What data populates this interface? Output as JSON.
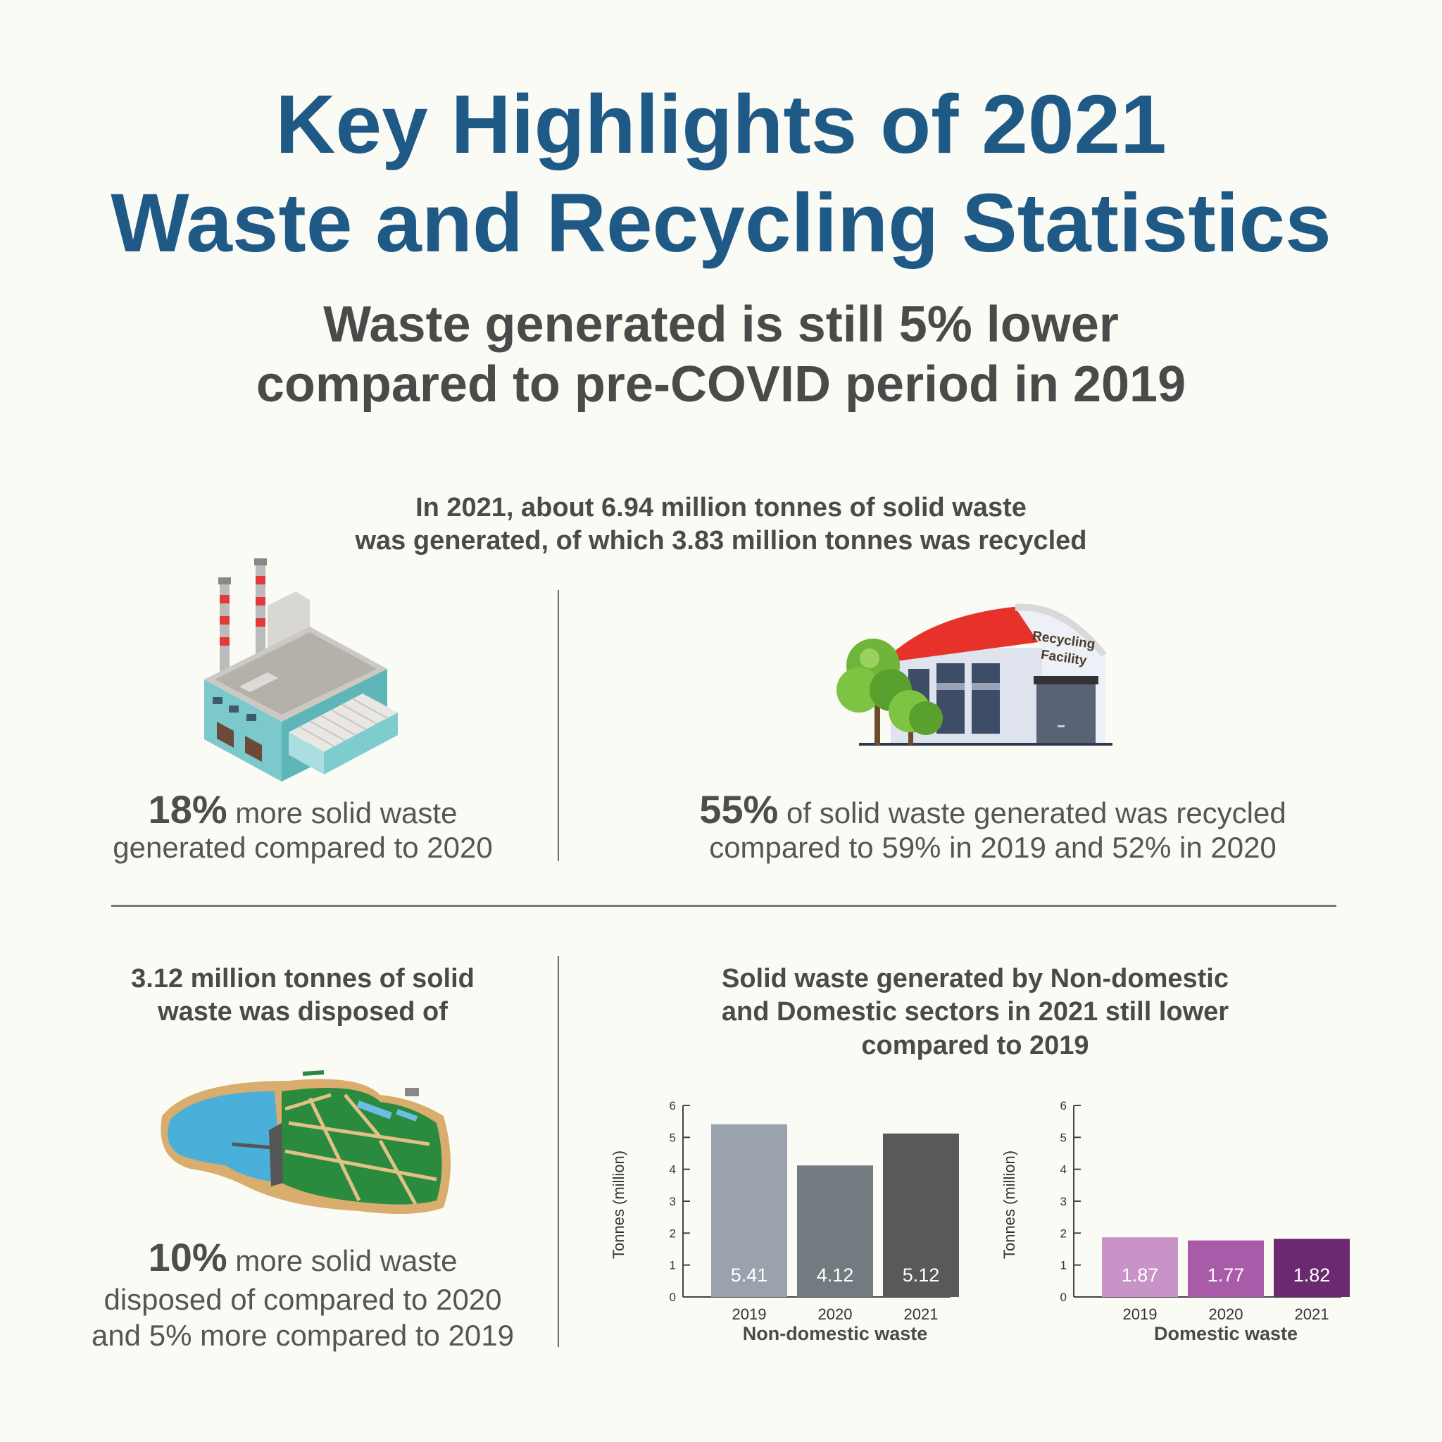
{
  "header": {
    "title_line1": "Key Highlights of 2021",
    "title_line2": "Waste and Recycling Statistics",
    "subtitle_line1": "Waste generated is still 5% lower",
    "subtitle_line2": "compared to pre-COVID period in 2019"
  },
  "intro": {
    "line1": "In 2021, about 6.94 million tonnes of solid waste",
    "line2": "was generated, of which 3.83 million tonnes was recycled"
  },
  "stat_generated": {
    "big": "18%",
    "rest1": " more solid waste",
    "line2": "generated compared to 2020"
  },
  "stat_recycled": {
    "big": "55%",
    "rest1": " of solid waste generated was recycled",
    "line2": "compared to 59% in 2019 and 52% in 2020"
  },
  "recycling_sign": {
    "line1": "Recycling",
    "line2": "Facility"
  },
  "disposed": {
    "heading_line1": "3.12 million tonnes of solid",
    "heading_line2": "waste was disposed of",
    "big": "10%",
    "rest1": " more solid waste",
    "line2": "disposed of compared to 2020",
    "line3": "and 5% more compared to 2019"
  },
  "sectors": {
    "heading_line1": "Solid waste generated by Non-domestic",
    "heading_line2": "and Domestic sectors in 2021 still lower",
    "heading_line3": "compared to 2019"
  },
  "colors": {
    "title": "#1f5a86",
    "nondomestic": [
      "#9aa3ad",
      "#727b7f",
      "#58595b"
    ],
    "domestic": [
      "#c893c6",
      "#a85ba9",
      "#6b2a6f"
    ]
  },
  "chart_data": [
    {
      "type": "bar",
      "categories": [
        "2019",
        "2020",
        "2021"
      ],
      "values": [
        5.41,
        4.12,
        5.12
      ],
      "value_labels": [
        "5.41",
        "4.12",
        "5.12"
      ],
      "title": "",
      "xlabel": "Non-domestic waste",
      "ylabel": "Tonnes (million)",
      "ylim": [
        0,
        6
      ],
      "yticks": [
        "0",
        "1",
        "2",
        "3",
        "4",
        "5",
        "6"
      ]
    },
    {
      "type": "bar",
      "categories": [
        "2019",
        "2020",
        "2021"
      ],
      "values": [
        1.87,
        1.77,
        1.82
      ],
      "value_labels": [
        "1.87",
        "1.77",
        "1.82"
      ],
      "title": "",
      "xlabel": "Domestic waste",
      "ylabel": "Tonnes (million)",
      "ylim": [
        0,
        6
      ],
      "yticks": [
        "0",
        "1",
        "2",
        "3",
        "4",
        "5",
        "6"
      ]
    }
  ]
}
